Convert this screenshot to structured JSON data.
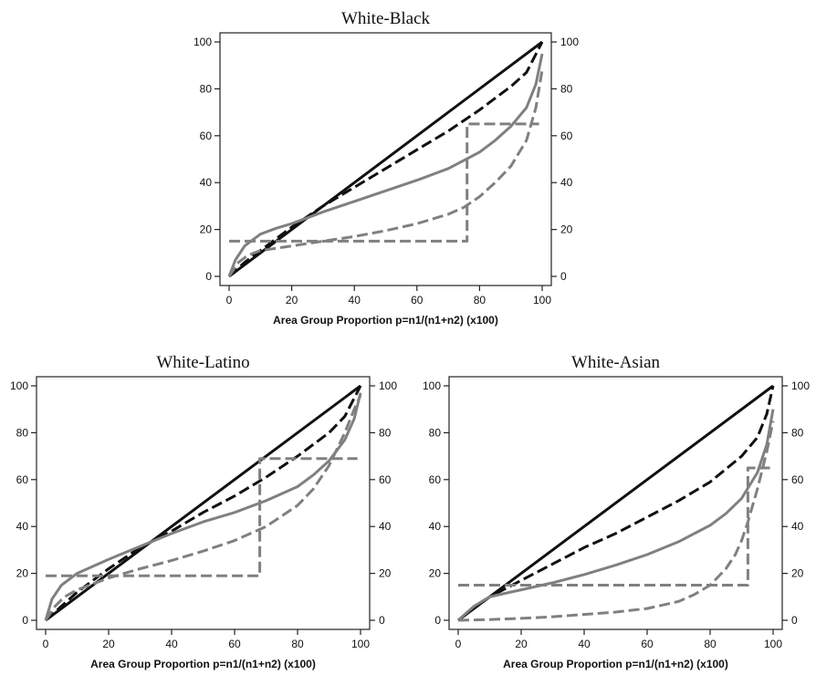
{
  "chart_data": [
    {
      "type": "line",
      "title": "White-Black",
      "xlabel": "Area Group Proportion p=n1/(n1+n2) (x100)",
      "ylabel": "",
      "xlim": [
        0,
        100
      ],
      "ylim": [
        0,
        100
      ],
      "xticks": [
        0,
        20,
        40,
        60,
        80,
        100
      ],
      "yticks": [
        0,
        20,
        40,
        60,
        80,
        100
      ],
      "right_axis": true,
      "grid": false,
      "series": [
        {
          "style": "solid",
          "color": "#111111",
          "x": [
            0,
            100
          ],
          "y": [
            0,
            100
          ]
        },
        {
          "style": "dashed",
          "color": "#111111",
          "x": [
            0,
            5,
            10,
            20,
            30,
            40,
            50,
            60,
            70,
            80,
            90,
            95,
            100
          ],
          "y": [
            0,
            6,
            11,
            21,
            30,
            38,
            46,
            54,
            62,
            71,
            81,
            87,
            100
          ]
        },
        {
          "style": "solid",
          "color": "#808080",
          "x": [
            0,
            2,
            5,
            10,
            15,
            20,
            25,
            30,
            40,
            50,
            60,
            70,
            80,
            85,
            90,
            95,
            98,
            100
          ],
          "y": [
            0,
            7,
            13,
            18,
            20.5,
            22.5,
            25,
            27.5,
            32,
            36.5,
            41,
            46,
            53,
            58,
            64,
            72,
            82,
            95
          ]
        },
        {
          "style": "dashed",
          "color": "#808080",
          "x": [
            0,
            3,
            6,
            10,
            15,
            20,
            30,
            40,
            50,
            60,
            70,
            75,
            80,
            85,
            90,
            95,
            98,
            100
          ],
          "y": [
            0,
            6,
            9,
            11,
            12,
            13,
            15,
            17,
            19.5,
            22.5,
            26.5,
            29.5,
            34,
            40,
            47,
            58,
            72,
            88
          ]
        },
        {
          "style": "dashed-step",
          "color": "#808080",
          "x": [
            0,
            76,
            76,
            99
          ],
          "y": [
            15,
            15,
            65,
            65
          ]
        }
      ]
    },
    {
      "type": "line",
      "title": "White-Latino",
      "xlabel": "Area Group Proportion p=n1/(n1+n2) (x100)",
      "ylabel": "",
      "xlim": [
        0,
        100
      ],
      "ylim": [
        0,
        100
      ],
      "xticks": [
        0,
        20,
        40,
        60,
        80,
        100
      ],
      "yticks": [
        0,
        20,
        40,
        60,
        80,
        100
      ],
      "right_axis": true,
      "grid": false,
      "series": [
        {
          "style": "solid",
          "color": "#111111",
          "x": [
            0,
            100
          ],
          "y": [
            0,
            100
          ]
        },
        {
          "style": "dashed",
          "color": "#111111",
          "x": [
            0,
            5,
            10,
            20,
            30,
            40,
            50,
            60,
            70,
            80,
            90,
            95,
            100
          ],
          "y": [
            0,
            6,
            12,
            22,
            31,
            38,
            46,
            53,
            61,
            70,
            80,
            87,
            100
          ]
        },
        {
          "style": "solid",
          "color": "#808080",
          "x": [
            0,
            2,
            5,
            10,
            15,
            20,
            30,
            40,
            50,
            60,
            70,
            80,
            85,
            90,
            95,
            98,
            100
          ],
          "y": [
            0,
            9,
            15,
            20,
            23,
            26,
            31.5,
            37,
            42,
            46,
            51,
            57,
            62,
            68,
            77,
            86,
            97
          ]
        },
        {
          "style": "dashed",
          "color": "#808080",
          "x": [
            0,
            3,
            6,
            10,
            20,
            30,
            40,
            50,
            60,
            70,
            80,
            85,
            90,
            95,
            98,
            100
          ],
          "y": [
            0,
            6,
            10,
            13,
            18,
            22,
            25.5,
            29.5,
            34,
            40,
            49,
            56,
            66,
            80,
            90,
            96
          ]
        },
        {
          "style": "dashed-step",
          "color": "#808080",
          "x": [
            0,
            68,
            68,
            99
          ],
          "y": [
            19,
            19,
            69,
            69
          ]
        }
      ]
    },
    {
      "type": "line",
      "title": "White-Asian",
      "xlabel": "Area Group Proportion p=n1/(n1+n2) (x100)",
      "ylabel": "",
      "xlim": [
        0,
        100
      ],
      "ylim": [
        0,
        100
      ],
      "xticks": [
        0,
        20,
        40,
        60,
        80,
        100
      ],
      "yticks": [
        0,
        20,
        40,
        60,
        80,
        100
      ],
      "right_axis": true,
      "grid": false,
      "series": [
        {
          "style": "solid",
          "color": "#111111",
          "x": [
            0,
            100
          ],
          "y": [
            0,
            100
          ]
        },
        {
          "style": "dashed",
          "color": "#111111",
          "x": [
            0,
            5,
            10,
            20,
            30,
            40,
            50,
            60,
            70,
            80,
            90,
            95,
            98,
            100
          ],
          "y": [
            0,
            5,
            10,
            17,
            24,
            31,
            37,
            44,
            51,
            59,
            70,
            78,
            88,
            100
          ]
        },
        {
          "style": "solid",
          "color": "#808080",
          "x": [
            0,
            5,
            10,
            15,
            20,
            30,
            40,
            50,
            60,
            70,
            80,
            85,
            90,
            95,
            98,
            100
          ],
          "y": [
            0,
            6,
            10,
            11.5,
            13,
            16,
            19.5,
            23.5,
            28,
            33.5,
            40.5,
            45.5,
            52,
            63,
            75,
            90
          ]
        },
        {
          "style": "dashed",
          "color": "#808080",
          "x": [
            0,
            10,
            20,
            30,
            40,
            50,
            60,
            70,
            75,
            80,
            85,
            88,
            90,
            92,
            95,
            98,
            100
          ],
          "y": [
            0,
            0.3,
            0.8,
            1.5,
            2.5,
            3.5,
            5,
            8,
            11,
            15,
            22,
            28,
            34,
            42,
            56,
            72,
            85
          ]
        },
        {
          "style": "dashed-step",
          "color": "#808080",
          "x": [
            0,
            92,
            92,
            99
          ],
          "y": [
            15,
            15,
            65,
            65
          ]
        }
      ]
    }
  ]
}
